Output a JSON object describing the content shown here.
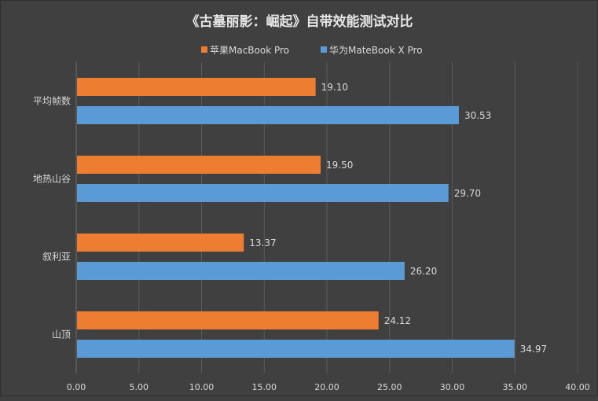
{
  "chart_data": {
    "type": "bar",
    "orientation": "horizontal",
    "title": "《古墓丽影：崛起》自带效能测试对比",
    "categories": [
      "平均帧数",
      "地热山谷",
      "叙利亚",
      "山顶"
    ],
    "series": [
      {
        "name": "苹果MacBook Pro",
        "color": "#ed7d31",
        "values": [
          19.1,
          19.5,
          13.37,
          24.12
        ],
        "labels": [
          "19.10",
          "19.50",
          "13.37",
          "24.12"
        ]
      },
      {
        "name": "华为MateBook X Pro",
        "color": "#5b9bd5",
        "values": [
          30.53,
          29.7,
          26.2,
          34.97
        ],
        "labels": [
          "30.53",
          "29.70",
          "26.20",
          "34.97"
        ]
      }
    ],
    "xlim": [
      0,
      40
    ],
    "xticks": [
      0,
      5,
      10,
      15,
      20,
      25,
      30,
      35,
      40
    ],
    "xtick_labels": [
      "0.00",
      "5.00",
      "10.00",
      "15.00",
      "20.00",
      "25.00",
      "30.00",
      "35.00",
      "40.00"
    ],
    "grid": true,
    "legend_position": "top",
    "xlabel": "",
    "ylabel": ""
  }
}
